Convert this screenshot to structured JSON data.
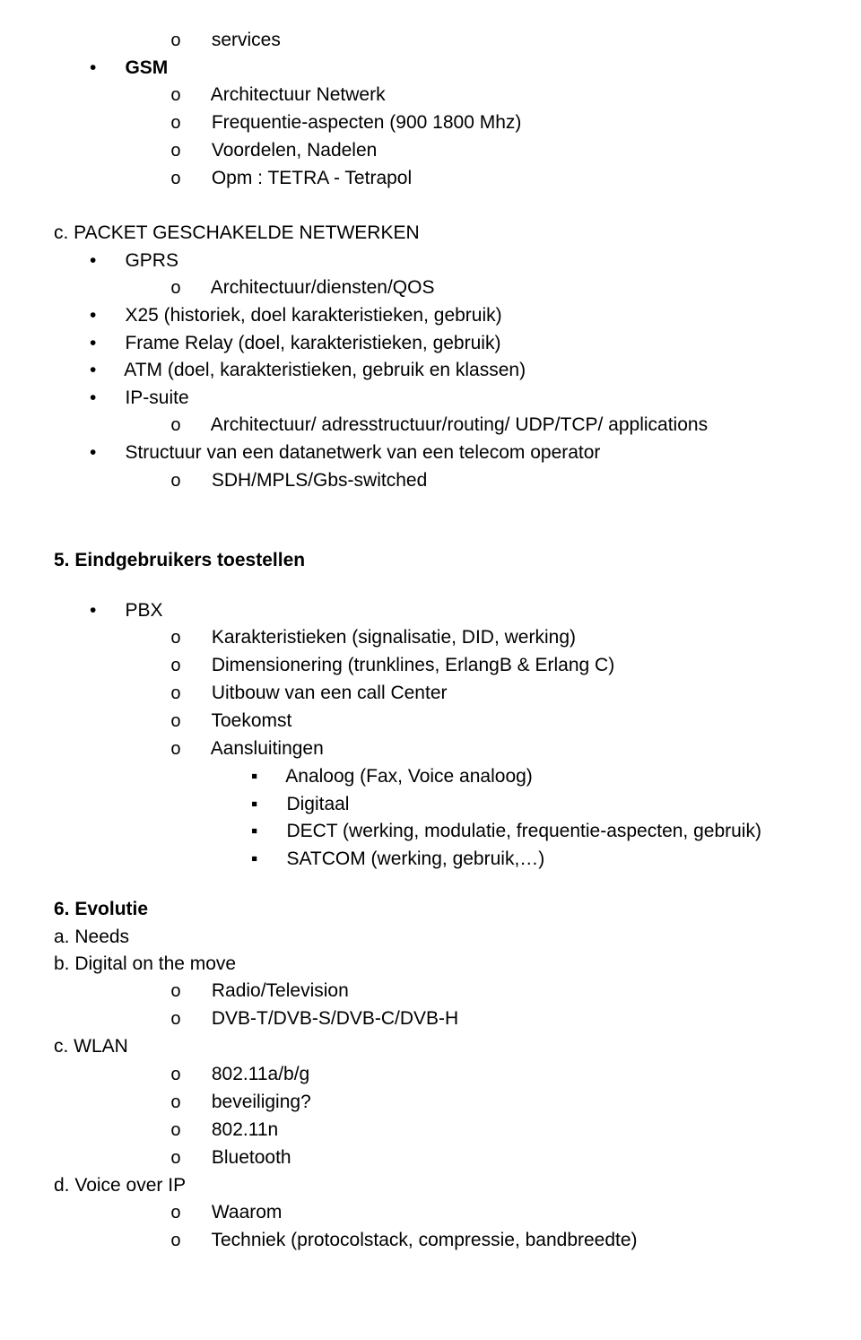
{
  "top": {
    "services": "services",
    "gsm_heading": "GSM",
    "gsm_items": [
      "Architectuur Netwerk",
      "Frequentie-aspecten (900 1800 Mhz)",
      "Voordelen, Nadelen",
      "Opm : TETRA - Tetrapol"
    ]
  },
  "section_c": {
    "label": "c. PACKET GESCHAKELDE NETWERKEN",
    "gprs_label": "GPRS",
    "gprs_items": [
      "Architectuur/diensten/QOS"
    ],
    "x25": "X25 (historiek, doel karakteristieken, gebruik)",
    "frame_relay": "Frame Relay (doel, karakteristieken, gebruik)",
    "atm": "ATM (doel, karakteristieken, gebruik en klassen)",
    "ip_suite_label": "IP-suite",
    "ip_suite_items": [
      "Architectuur/ adresstructuur/routing/ UDP/TCP/ applications"
    ],
    "structuur_label": "Structuur van een datanetwerk van een telecom operator",
    "structuur_items": [
      "SDH/MPLS/Gbs-switched"
    ]
  },
  "section5": {
    "heading": "5. Eindgebruikers toestellen",
    "pbx_label": "PBX",
    "pbx_items": [
      "Karakteristieken (signalisatie, DID, werking)",
      "Dimensionering (trunklines, ErlangB & Erlang C)",
      "Uitbouw van een call Center",
      "Toekomst",
      "Aansluitingen"
    ],
    "aansluitingen_sub": [
      "Analoog (Fax, Voice analoog)",
      "Digitaal",
      "DECT (werking, modulatie, frequentie-aspecten, gebruik)",
      "SATCOM (werking, gebruik,…)"
    ]
  },
  "section6": {
    "heading": "6. Evolutie",
    "a": "a. Needs",
    "b": "b. Digital on the move",
    "b_items": [
      "Radio/Television",
      "DVB-T/DVB-S/DVB-C/DVB-H"
    ],
    "c": "c. WLAN",
    "c_items": [
      "802.11a/b/g",
      "beveiliging?",
      "802.11n",
      "Bluetooth"
    ],
    "d": "d. Voice over IP",
    "d_items": [
      "Waarom",
      "Techniek (protocolstack, compressie, bandbreedte)"
    ]
  },
  "markers": {
    "o": "o",
    "dot": "•",
    "sq": "▪"
  }
}
